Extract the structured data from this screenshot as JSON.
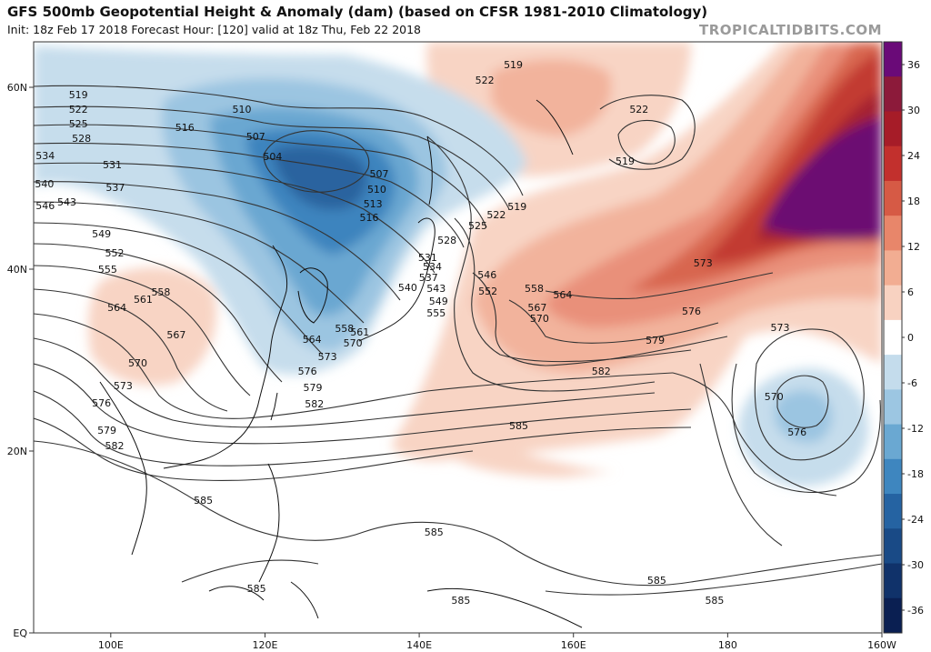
{
  "header": {
    "title": "GFS 500mb Geopotential Height & Anomaly (dam) (based on CFSR 1981-2010 Climatology)",
    "subtitle": "Init: 18z Feb 17 2018   Forecast Hour: [120]   valid at 18z Thu, Feb 22 2018",
    "watermark": "TROPICALTIDBITS.COM"
  },
  "map": {
    "lat_labels": [
      "60N",
      "40N",
      "20N",
      "EQ"
    ],
    "lon_labels": [
      "100E",
      "120E",
      "140E",
      "160E",
      "180",
      "160W"
    ]
  },
  "colorbar": {
    "labels": [
      "36",
      "30",
      "24",
      "18",
      "12",
      "6",
      "0",
      "-6",
      "-12",
      "-18",
      "-24",
      "-30",
      "-36"
    ],
    "colors": [
      "#6a0a78",
      "#8c1a3a",
      "#a61c28",
      "#c2302d",
      "#d65a45",
      "#e8866a",
      "#f2ad92",
      "#f8d2c1",
      "#ffffff",
      "#c4dcec",
      "#9cc6e2",
      "#6aa8d2",
      "#3e86bf",
      "#2563a2",
      "#194a86",
      "#10326a",
      "#0a1f52"
    ]
  },
  "contours": [
    {
      "label": "504",
      "lon": 121,
      "lat": 52.4
    },
    {
      "label": "507",
      "lon": 118.8,
      "lat": 54.6
    },
    {
      "label": "510",
      "lon": 117,
      "lat": 57.6
    },
    {
      "label": "507",
      "lon": 134.8,
      "lat": 50.5
    },
    {
      "label": "510",
      "lon": 134.5,
      "lat": 48.8
    },
    {
      "label": "513",
      "lon": 134,
      "lat": 47.2
    },
    {
      "label": "516",
      "lon": 133.5,
      "lat": 45.7
    },
    {
      "label": "516",
      "lon": 109.6,
      "lat": 55.6
    },
    {
      "label": "519",
      "lon": 95.8,
      "lat": 59.2
    },
    {
      "label": "522",
      "lon": 95.8,
      "lat": 57.6
    },
    {
      "label": "525",
      "lon": 95.8,
      "lat": 56.0
    },
    {
      "label": "528",
      "lon": 96.2,
      "lat": 54.4
    },
    {
      "label": "531",
      "lon": 100.2,
      "lat": 51.5
    },
    {
      "label": "534",
      "lon": 91.5,
      "lat": 52.5
    },
    {
      "label": "537",
      "lon": 100.6,
      "lat": 49.0
    },
    {
      "label": "540",
      "lon": 91.4,
      "lat": 49.4
    },
    {
      "label": "543",
      "lon": 94.3,
      "lat": 47.4
    },
    {
      "label": "546",
      "lon": 91.5,
      "lat": 47.0
    },
    {
      "label": "549",
      "lon": 98.8,
      "lat": 43.9
    },
    {
      "label": "552",
      "lon": 100.5,
      "lat": 41.8
    },
    {
      "label": "555",
      "lon": 99.6,
      "lat": 40.0
    },
    {
      "label": "558",
      "lon": 106.5,
      "lat": 37.5
    },
    {
      "label": "561",
      "lon": 104.2,
      "lat": 36.7
    },
    {
      "label": "564",
      "lon": 100.8,
      "lat": 35.8
    },
    {
      "label": "567",
      "lon": 108.5,
      "lat": 32.8
    },
    {
      "label": "570",
      "lon": 103.5,
      "lat": 29.7
    },
    {
      "label": "573",
      "lon": 101.6,
      "lat": 27.2
    },
    {
      "label": "576",
      "lon": 98.8,
      "lat": 25.3
    },
    {
      "label": "579",
      "lon": 99.5,
      "lat": 22.3
    },
    {
      "label": "582",
      "lon": 100.5,
      "lat": 20.6
    },
    {
      "label": "585",
      "lon": 112,
      "lat": 14.6
    },
    {
      "label": "585",
      "lon": 118.9,
      "lat": 4.9
    },
    {
      "label": "585",
      "lon": 145.4,
      "lat": 3.6
    },
    {
      "label": "585",
      "lon": 178.3,
      "lat": 3.6
    },
    {
      "label": "585",
      "lon": 170.8,
      "lat": 5.8
    },
    {
      "label": "585",
      "lon": 141.9,
      "lat": 11.1
    },
    {
      "label": "585",
      "lon": 152.9,
      "lat": 22.8
    },
    {
      "label": "582",
      "lon": 126.4,
      "lat": 25.2
    },
    {
      "label": "582",
      "lon": 163.6,
      "lat": 28.8
    },
    {
      "label": "579",
      "lon": 126.2,
      "lat": 27.0
    },
    {
      "label": "579",
      "lon": 170.6,
      "lat": 32.2
    },
    {
      "label": "576",
      "lon": 125.5,
      "lat": 28.8
    },
    {
      "label": "576",
      "lon": 175.3,
      "lat": 35.4
    },
    {
      "label": "576",
      "lon": 189,
      "lat": 22.1
    },
    {
      "label": "573",
      "lon": 128.1,
      "lat": 30.4
    },
    {
      "label": "573",
      "lon": 176.8,
      "lat": 40.7
    },
    {
      "label": "573",
      "lon": 186.8,
      "lat": 33.6
    },
    {
      "label": "570",
      "lon": 131.4,
      "lat": 31.9
    },
    {
      "label": "570",
      "lon": 186,
      "lat": 26.0
    },
    {
      "label": "570",
      "lon": 155.6,
      "lat": 34.6
    },
    {
      "label": "567",
      "lon": 155.3,
      "lat": 35.8
    },
    {
      "label": "564",
      "lon": 158.6,
      "lat": 37.2
    },
    {
      "label": "564",
      "lon": 126.1,
      "lat": 32.3
    },
    {
      "label": "561",
      "lon": 132.3,
      "lat": 33.1
    },
    {
      "label": "558",
      "lon": 130.3,
      "lat": 33.5
    },
    {
      "label": "558",
      "lon": 154.9,
      "lat": 37.9
    },
    {
      "label": "555",
      "lon": 142.2,
      "lat": 35.2
    },
    {
      "label": "552",
      "lon": 148.9,
      "lat": 37.6
    },
    {
      "label": "549",
      "lon": 142.5,
      "lat": 36.5
    },
    {
      "label": "546",
      "lon": 148.8,
      "lat": 39.4
    },
    {
      "label": "543",
      "lon": 142.2,
      "lat": 37.9
    },
    {
      "label": "540",
      "lon": 138.5,
      "lat": 38.0
    },
    {
      "label": "537",
      "lon": 141.2,
      "lat": 39.1
    },
    {
      "label": "534",
      "lon": 141.7,
      "lat": 40.3
    },
    {
      "label": "531",
      "lon": 141.1,
      "lat": 41.3
    },
    {
      "label": "528",
      "lon": 143.6,
      "lat": 43.2
    },
    {
      "label": "525",
      "lon": 147.6,
      "lat": 44.8
    },
    {
      "label": "522",
      "lon": 150,
      "lat": 46.0
    },
    {
      "label": "519",
      "lon": 152.7,
      "lat": 46.9
    },
    {
      "label": "519",
      "lon": 152.2,
      "lat": 62.5
    },
    {
      "label": "522",
      "lon": 148.5,
      "lat": 60.8
    },
    {
      "label": "519",
      "lon": 166.7,
      "lat": 51.9
    },
    {
      "label": "522",
      "lon": 168.5,
      "lat": 57.6
    }
  ]
}
